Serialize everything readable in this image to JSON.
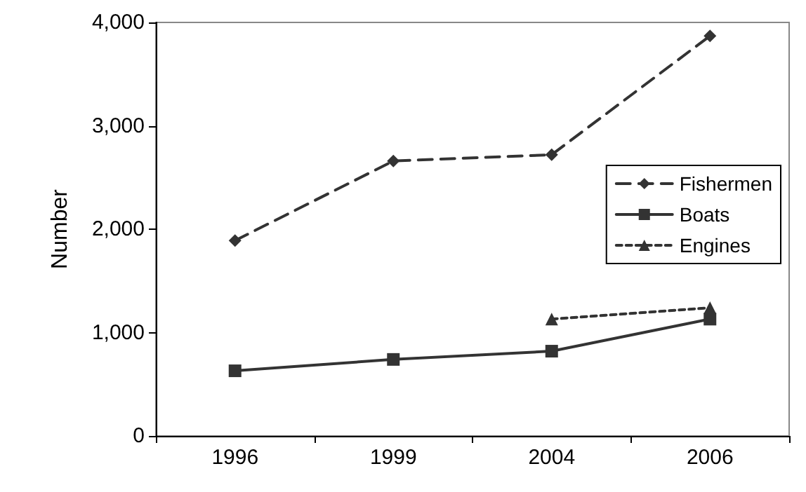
{
  "chart_data": {
    "type": "line",
    "ylabel": "Number",
    "categories": [
      "1996",
      "1999",
      "2004",
      "2006"
    ],
    "series": [
      {
        "name": "Fishermen",
        "color": "#333333",
        "values": [
          1890,
          2660,
          2720,
          3870
        ],
        "marker": "diamond",
        "line_style": "dashed"
      },
      {
        "name": "Boats",
        "color": "#333333",
        "values": [
          630,
          740,
          820,
          1130
        ],
        "marker": "square",
        "line_style": "solid"
      },
      {
        "name": "Engines",
        "color": "#333333",
        "values": [
          null,
          null,
          1130,
          1240
        ],
        "marker": "triangle",
        "line_style": "dotted"
      }
    ],
    "ylim": [
      0,
      4000
    ],
    "yticks": [
      0,
      {
        "value": 1000,
        "label": "1,000"
      },
      {
        "value": 2000,
        "label": "2,000"
      },
      {
        "value": 3000,
        "label": "3,000"
      },
      {
        "value": 4000,
        "label": "4,000"
      }
    ],
    "grid": false,
    "legend": "right"
  }
}
